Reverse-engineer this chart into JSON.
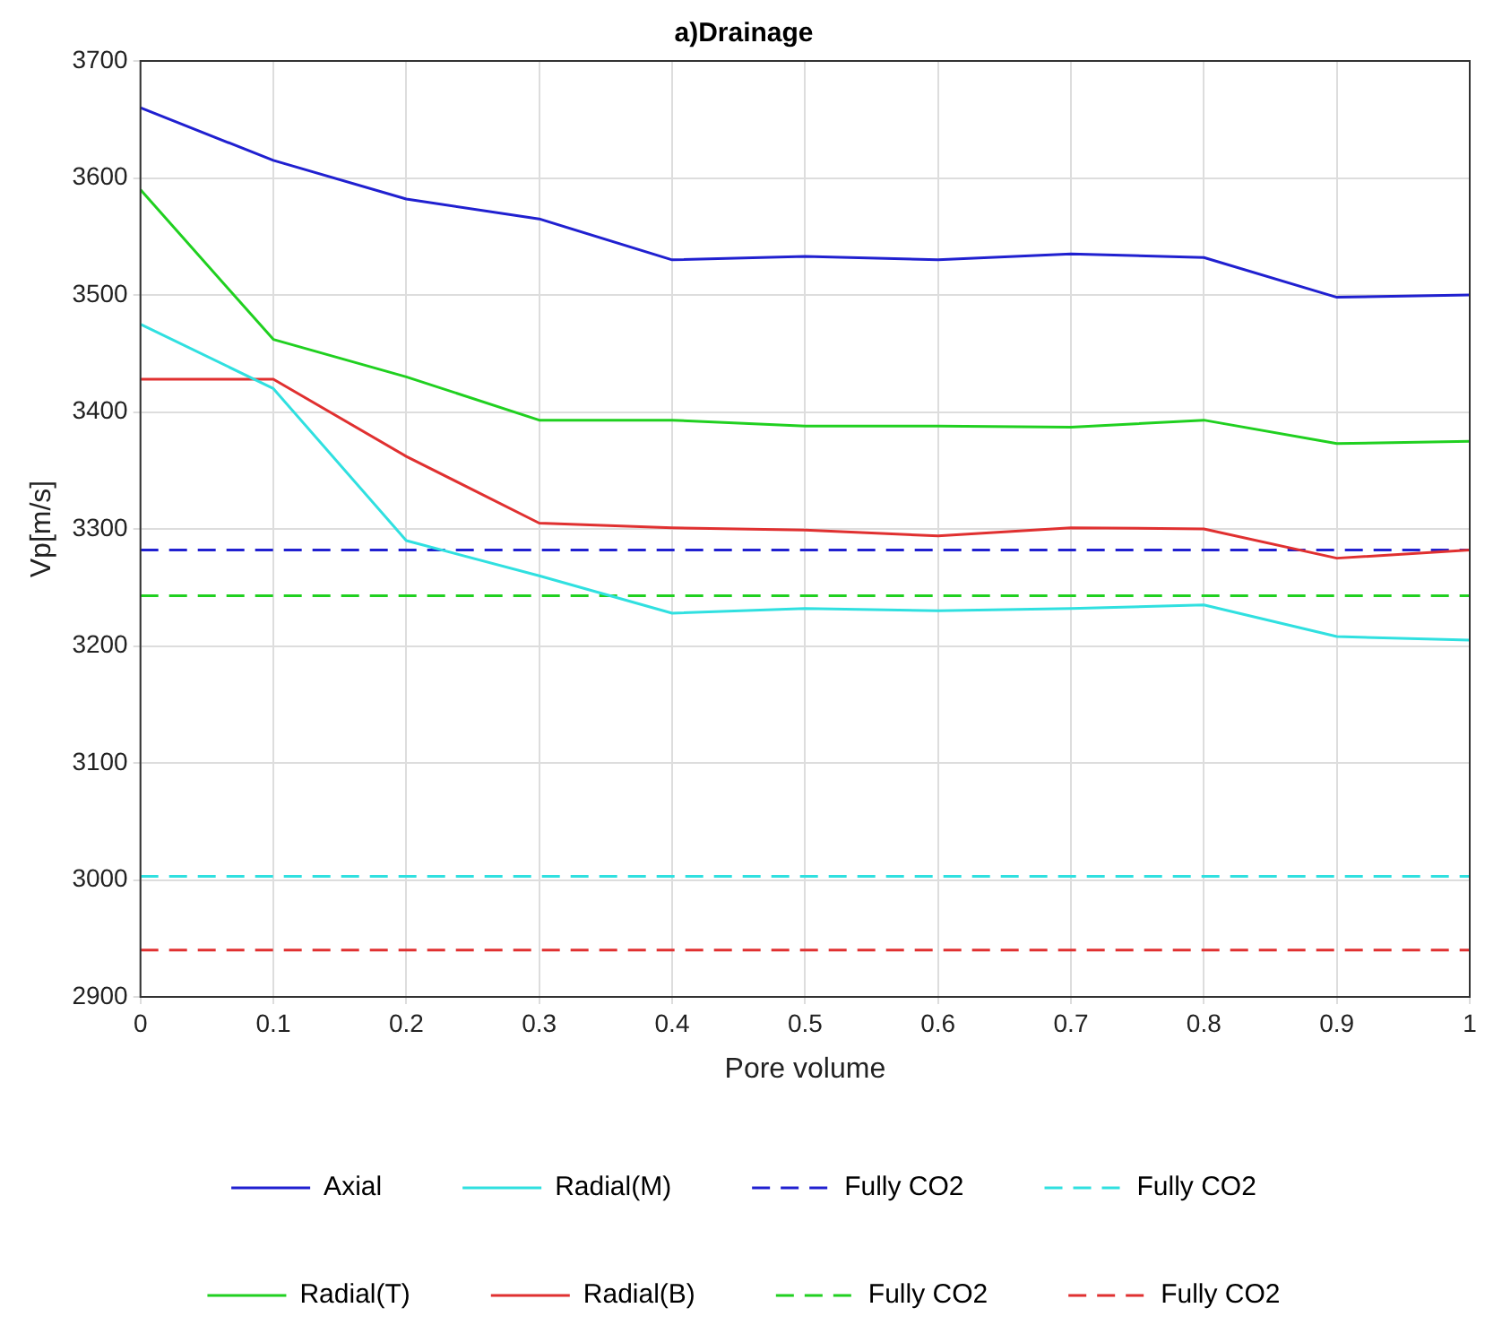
{
  "chart_data": {
    "type": "line",
    "title": "a)Drainage",
    "xlabel": "Pore volume",
    "ylabel": "Vp[m/s]",
    "x": [
      0,
      0.1,
      0.2,
      0.3,
      0.4,
      0.5,
      0.6,
      0.7,
      0.8,
      0.9,
      1
    ],
    "series": [
      {
        "name": "Axial",
        "color": "#2020d0",
        "values": [
          3660,
          3615,
          3582,
          3565,
          3530,
          3533,
          3530,
          3535,
          3532,
          3498,
          3500
        ]
      },
      {
        "name": "Radial(T)",
        "color": "#20d020",
        "values": [
          3590,
          3462,
          3430,
          3393,
          3393,
          3388,
          3388,
          3387,
          3393,
          3373,
          3375
        ]
      },
      {
        "name": "Radial(M)",
        "color": "#30e0e0",
        "values": [
          3475,
          3420,
          3290,
          3260,
          3228,
          3232,
          3230,
          3232,
          3235,
          3208,
          3205
        ]
      },
      {
        "name": "Radial(B)",
        "color": "#e03030",
        "values": [
          3428,
          3428,
          3362,
          3305,
          3301,
          3299,
          3294,
          3301,
          3300,
          3275,
          3282
        ]
      }
    ],
    "ref_lines": [
      {
        "axis": "y",
        "value": 3282,
        "label": "Fully CO2",
        "color": "#2020d0",
        "line_style": "dashed"
      },
      {
        "axis": "y",
        "value": 3243,
        "label": "Fully CO2",
        "color": "#20d020",
        "line_style": "dashed"
      },
      {
        "axis": "y",
        "value": 3003,
        "label": "Fully CO2",
        "color": "#30e0e0",
        "line_style": "dashed"
      },
      {
        "axis": "y",
        "value": 2940,
        "label": "Fully CO2",
        "color": "#e03030",
        "line_style": "dashed"
      }
    ],
    "xlim": [
      0,
      1
    ],
    "xticks": [
      0,
      0.1,
      0.2,
      0.3,
      0.4,
      0.5,
      0.6,
      0.7,
      0.8,
      0.9,
      1
    ],
    "ylim": [
      2900,
      3700
    ],
    "yticks": [
      2900,
      3000,
      3100,
      3200,
      3300,
      3400,
      3500,
      3600,
      3700
    ],
    "grid": true,
    "legend": "bottom",
    "marker": "none",
    "line_style": "solid"
  }
}
